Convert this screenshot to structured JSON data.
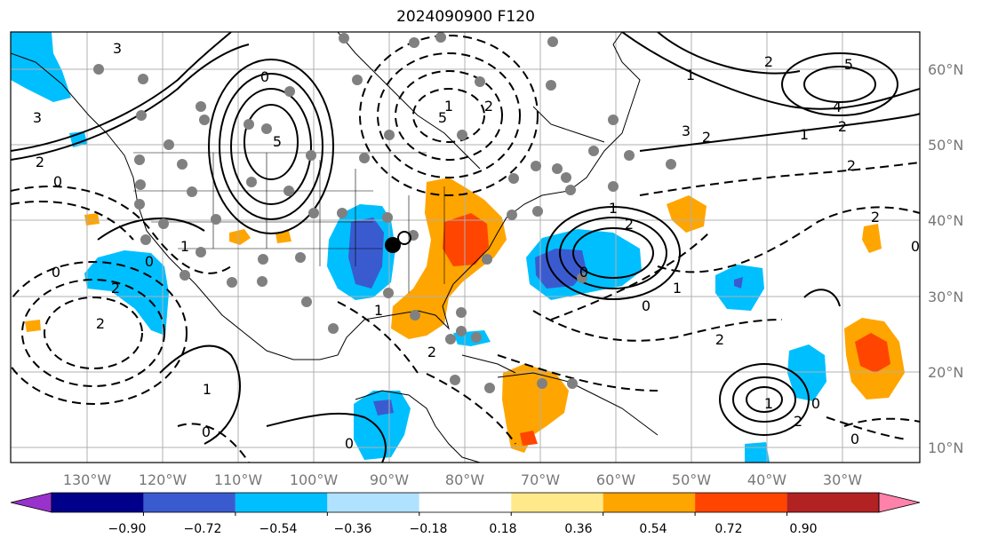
{
  "title": "2024090900 F120",
  "lat_labels": [
    "60°N",
    "50°N",
    "40°N",
    "30°N",
    "20°N",
    "10°N"
  ],
  "lon_labels": [
    "130°W",
    "120°W",
    "110°W",
    "100°W",
    "90°W",
    "80°W",
    "70°W",
    "60°W",
    "50°W",
    "40°W",
    "30°W"
  ],
  "colorbar": {
    "ticks": [
      "−0.90",
      "−0.72",
      "−0.54",
      "−0.36",
      "−0.18",
      "0.18",
      "0.36",
      "0.54",
      "0.72",
      "0.90"
    ],
    "colors": [
      "#9932cc",
      "#00008b",
      "#3a5bd0",
      "#00bfff",
      "#b0e2ff",
      "#ffffff",
      "#ffe98a",
      "#ffa500",
      "#ff4500",
      "#b22222",
      "#ff82ab"
    ]
  },
  "contour_labels": [
    "3",
    "0",
    "5",
    "2",
    "3",
    "0",
    "2",
    "0",
    "1",
    "0",
    "2",
    "1",
    "0",
    "1",
    "2",
    "5",
    "1",
    "2",
    "1",
    "2",
    "5",
    "4",
    "3",
    "2",
    "1",
    "2",
    "2",
    "0",
    "0",
    "1",
    "2",
    "1",
    "2",
    "0",
    "1",
    "2",
    "0",
    "2",
    "0",
    "0"
  ]
}
